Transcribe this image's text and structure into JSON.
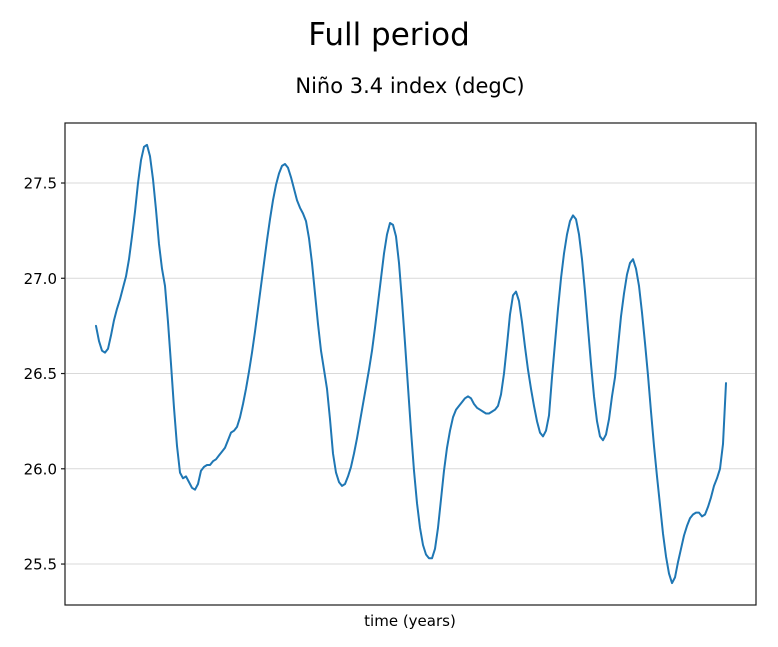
{
  "figure": {
    "suptitle": "Full period",
    "axes_title": "Niño 3.4 index (degC)",
    "xlabel": "time (years)"
  },
  "chart_data": {
    "type": "line",
    "title": "Niño 3.4 index (degC)",
    "suptitle": "Full period",
    "xlabel": "time (years)",
    "ylabel": "",
    "legend": "none",
    "grid": "horizontal",
    "x_tick_labels": [],
    "y_tick_labels": [
      "25.5",
      "26.0",
      "26.5",
      "27.0",
      "27.5"
    ],
    "y_tick_values": [
      25.5,
      26.0,
      26.5,
      27.0,
      27.5
    ],
    "ylim": [
      25.285,
      27.815
    ],
    "colors": {
      "line": "#1f77b4",
      "grid": "#d9d9d9",
      "spine": "#1a1a1a",
      "text": "#000000",
      "background": "#ffffff"
    },
    "series": [
      {
        "name": "Niño 3.4 index (degC)",
        "values": [
          26.75,
          26.67,
          26.62,
          26.61,
          26.63,
          26.7,
          26.78,
          26.84,
          26.89,
          26.95,
          27.01,
          27.1,
          27.22,
          27.35,
          27.5,
          27.62,
          27.69,
          27.7,
          27.64,
          27.52,
          27.36,
          27.18,
          27.05,
          26.96,
          26.77,
          26.55,
          26.32,
          26.12,
          25.98,
          25.95,
          25.96,
          25.93,
          25.9,
          25.89,
          25.92,
          25.99,
          26.01,
          26.02,
          26.02,
          26.04,
          26.05,
          26.07,
          26.09,
          26.11,
          26.15,
          26.19,
          26.2,
          26.22,
          26.27,
          26.34,
          26.42,
          26.51,
          26.61,
          26.72,
          26.84,
          26.96,
          27.08,
          27.2,
          27.31,
          27.41,
          27.49,
          27.55,
          27.59,
          27.6,
          27.58,
          27.53,
          27.47,
          27.41,
          27.37,
          27.34,
          27.3,
          27.21,
          27.08,
          26.92,
          26.76,
          26.62,
          26.52,
          26.42,
          26.26,
          26.08,
          25.98,
          25.93,
          25.91,
          25.92,
          25.96,
          26.01,
          26.08,
          26.16,
          26.25,
          26.34,
          26.43,
          26.52,
          26.62,
          26.74,
          26.87,
          27.0,
          27.13,
          27.23,
          27.29,
          27.28,
          27.22,
          27.08,
          26.88,
          26.66,
          26.43,
          26.2,
          25.99,
          25.82,
          25.69,
          25.6,
          25.55,
          25.53,
          25.53,
          25.58,
          25.69,
          25.84,
          25.99,
          26.11,
          26.2,
          26.27,
          26.31,
          26.33,
          26.35,
          26.37,
          26.38,
          26.37,
          26.34,
          26.32,
          26.31,
          26.3,
          26.29,
          26.29,
          26.3,
          26.31,
          26.33,
          26.39,
          26.5,
          26.65,
          26.81,
          26.91,
          26.93,
          26.88,
          26.77,
          26.64,
          26.52,
          26.42,
          26.33,
          26.25,
          26.19,
          26.17,
          26.2,
          26.28,
          26.48,
          26.66,
          26.84,
          27.0,
          27.13,
          27.23,
          27.3,
          27.33,
          27.31,
          27.23,
          27.1,
          26.93,
          26.74,
          26.55,
          26.38,
          26.25,
          26.17,
          26.15,
          26.18,
          26.26,
          26.38,
          26.48,
          26.64,
          26.8,
          26.92,
          27.02,
          27.08,
          27.1,
          27.05,
          26.96,
          26.82,
          26.66,
          26.49,
          26.3,
          26.12,
          25.96,
          25.81,
          25.66,
          25.54,
          25.45,
          25.4,
          25.43,
          25.51,
          25.58,
          25.65,
          25.7,
          25.74,
          25.76,
          25.77,
          25.77,
          25.75,
          25.76,
          25.8,
          25.85,
          25.91,
          25.95,
          26.0,
          26.13,
          26.45
        ]
      }
    ]
  }
}
